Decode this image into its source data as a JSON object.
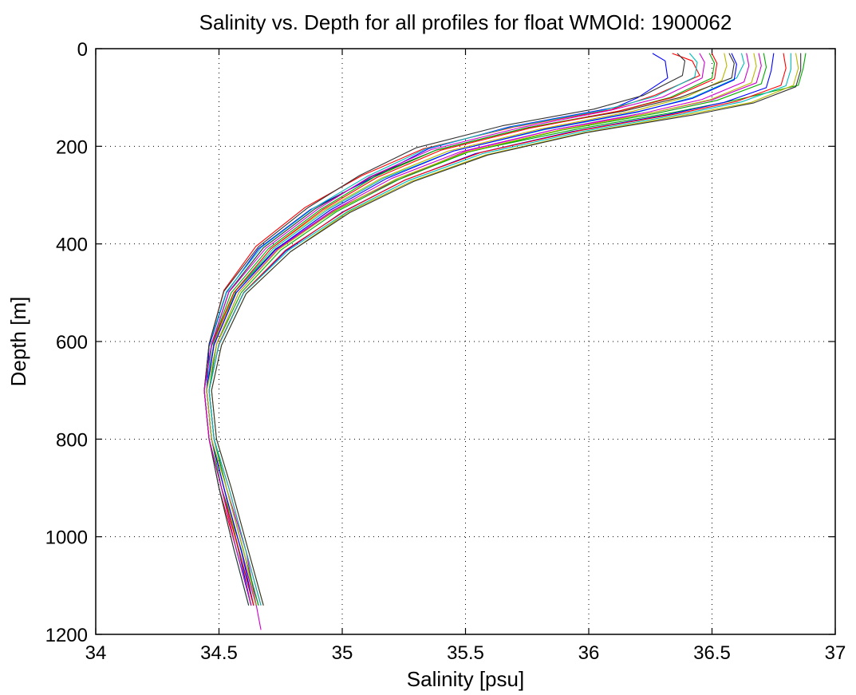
{
  "chart_data": {
    "type": "line",
    "title": "Salinity vs. Depth for all profiles for float WMOId: 1900062",
    "xlabel": "Salinity [psu]",
    "ylabel": "Depth [m]",
    "xlim": [
      34,
      37
    ],
    "ylim": [
      0,
      1200
    ],
    "y_inverted": true,
    "grid": true,
    "legend": "none",
    "x_ticks": [
      {
        "value": 34,
        "label": "34"
      },
      {
        "value": 34.5,
        "label": "34.5"
      },
      {
        "value": 35,
        "label": "35"
      },
      {
        "value": 35.5,
        "label": "35.5"
      },
      {
        "value": 36,
        "label": "36"
      },
      {
        "value": 36.5,
        "label": "36.5"
      },
      {
        "value": 37,
        "label": "37"
      }
    ],
    "y_ticks": [
      {
        "value": 0,
        "label": "0"
      },
      {
        "value": 200,
        "label": "200"
      },
      {
        "value": 400,
        "label": "400"
      },
      {
        "value": 600,
        "label": "600"
      },
      {
        "value": 800,
        "label": "800"
      },
      {
        "value": 1000,
        "label": "1000"
      },
      {
        "value": 1200,
        "label": "1200"
      }
    ],
    "series": [
      {
        "color": "#0000ff",
        "x": [
          36.26,
          36.31,
          36.32,
          36.2,
          36.11,
          35.68,
          35.35,
          35.12,
          34.87,
          34.66,
          34.53,
          34.46,
          34.45,
          34.47,
          34.52,
          34.58,
          34.63
        ],
        "y": [
          10,
          25,
          60,
          100,
          120,
          160,
          205,
          265,
          330,
          410,
          500,
          610,
          700,
          800,
          900,
          1030,
          1140
        ]
      },
      {
        "color": "#00aa00",
        "x": [
          36.88,
          36.87,
          36.85,
          36.6,
          36.35,
          35.95,
          35.52,
          35.23,
          34.98,
          34.73,
          34.57,
          34.48,
          34.45,
          34.47,
          34.51,
          34.59,
          34.65
        ],
        "y": [
          10,
          40,
          75,
          105,
          130,
          165,
          210,
          265,
          330,
          410,
          495,
          600,
          700,
          800,
          900,
          1025,
          1140
        ]
      },
      {
        "color": "#ff0000",
        "x": [
          36.34,
          36.42,
          36.45,
          36.27,
          36.09,
          35.7,
          35.33,
          35.08,
          34.85,
          34.65,
          34.52,
          34.46,
          34.44,
          34.46,
          34.5,
          34.57,
          34.63
        ],
        "y": [
          10,
          25,
          55,
          95,
          125,
          160,
          205,
          260,
          325,
          405,
          495,
          605,
          700,
          800,
          900,
          1025,
          1140
        ]
      },
      {
        "color": "#00bbbb",
        "x": [
          36.62,
          36.63,
          36.6,
          36.42,
          36.2,
          35.83,
          35.45,
          35.17,
          34.94,
          34.72,
          34.56,
          34.47,
          34.45,
          34.47,
          34.52,
          34.58,
          34.64
        ],
        "y": [
          10,
          30,
          60,
          100,
          130,
          165,
          210,
          265,
          330,
          410,
          500,
          610,
          700,
          800,
          900,
          1030,
          1140
        ]
      },
      {
        "color": "#cc00cc",
        "x": [
          36.69,
          36.7,
          36.68,
          36.5,
          36.27,
          35.87,
          35.5,
          35.22,
          34.97,
          34.74,
          34.58,
          34.49,
          34.46,
          34.48,
          34.53,
          34.61,
          34.67
        ],
        "y": [
          10,
          35,
          70,
          105,
          130,
          165,
          210,
          270,
          330,
          410,
          500,
          605,
          700,
          800,
          900,
          1030,
          1190
        ]
      },
      {
        "color": "#b8b800",
        "x": [
          36.55,
          36.56,
          36.54,
          36.39,
          36.18,
          35.8,
          35.43,
          35.16,
          34.93,
          34.71,
          34.56,
          34.48,
          34.45,
          34.47,
          34.52,
          34.58,
          34.64
        ],
        "y": [
          10,
          35,
          65,
          100,
          128,
          165,
          210,
          265,
          330,
          410,
          500,
          605,
          700,
          800,
          900,
          1025,
          1140
        ]
      },
      {
        "color": "#333333",
        "x": [
          36.57,
          36.59,
          36.58,
          36.37,
          36.14,
          35.75,
          35.38,
          35.12,
          34.89,
          34.68,
          34.54,
          34.47,
          34.44,
          34.46,
          34.51,
          34.58,
          34.64
        ],
        "y": [
          10,
          30,
          60,
          100,
          128,
          162,
          208,
          262,
          328,
          408,
          498,
          605,
          700,
          800,
          900,
          1025,
          1140
        ]
      },
      {
        "color": "#0000ff",
        "x": [
          36.75,
          36.74,
          36.72,
          36.55,
          36.32,
          35.93,
          35.54,
          35.25,
          35.0,
          34.77,
          34.6,
          34.5,
          34.46,
          34.48,
          34.53,
          34.6,
          34.66
        ],
        "y": [
          10,
          45,
          80,
          110,
          135,
          170,
          215,
          270,
          335,
          415,
          500,
          605,
          700,
          800,
          900,
          1030,
          1140
        ]
      },
      {
        "color": "#00aa00",
        "x": [
          36.49,
          36.51,
          36.5,
          36.33,
          36.12,
          35.74,
          35.38,
          35.13,
          34.91,
          34.7,
          34.55,
          34.47,
          34.44,
          34.46,
          34.51,
          34.57,
          34.63
        ],
        "y": [
          10,
          30,
          60,
          100,
          128,
          163,
          208,
          263,
          330,
          410,
          500,
          608,
          700,
          800,
          900,
          1025,
          1140
        ]
      },
      {
        "color": "#ff0000",
        "x": [
          36.79,
          36.8,
          36.78,
          36.6,
          36.36,
          35.96,
          35.56,
          35.26,
          35.01,
          34.77,
          34.6,
          34.5,
          34.46,
          34.48,
          34.54,
          34.61,
          34.67
        ],
        "y": [
          10,
          40,
          75,
          108,
          133,
          168,
          213,
          268,
          333,
          413,
          500,
          605,
          700,
          800,
          900,
          1030,
          1140
        ]
      },
      {
        "color": "#00bbbb",
        "x": [
          36.41,
          36.44,
          36.43,
          36.27,
          36.06,
          35.69,
          35.34,
          35.1,
          34.88,
          34.67,
          34.53,
          34.46,
          34.44,
          34.46,
          34.5,
          34.56,
          34.62
        ],
        "y": [
          10,
          28,
          58,
          98,
          126,
          160,
          205,
          262,
          328,
          408,
          498,
          606,
          700,
          800,
          900,
          1025,
          1140
        ]
      },
      {
        "color": "#cc00cc",
        "x": [
          36.64,
          36.65,
          36.63,
          36.46,
          36.24,
          35.86,
          35.48,
          35.2,
          34.96,
          34.73,
          34.57,
          34.48,
          34.45,
          34.47,
          34.52,
          34.59,
          34.65
        ],
        "y": [
          10,
          35,
          68,
          104,
          130,
          166,
          211,
          266,
          332,
          412,
          500,
          606,
          700,
          800,
          900,
          1028,
          1140
        ]
      },
      {
        "color": "#b8b800",
        "x": [
          36.84,
          36.85,
          36.83,
          36.66,
          36.4,
          35.98,
          35.58,
          35.28,
          35.02,
          34.79,
          34.61,
          34.51,
          34.47,
          34.49,
          34.55,
          34.62,
          34.68
        ],
        "y": [
          10,
          40,
          75,
          110,
          135,
          172,
          218,
          272,
          336,
          416,
          502,
          608,
          700,
          800,
          900,
          1030,
          1140
        ]
      },
      {
        "color": "#333333",
        "x": [
          36.36,
          36.39,
          36.38,
          36.22,
          36.02,
          35.65,
          35.3,
          35.07,
          34.86,
          34.66,
          34.52,
          34.46,
          34.44,
          34.46,
          34.5,
          34.56,
          34.62
        ],
        "y": [
          10,
          25,
          55,
          96,
          124,
          158,
          203,
          260,
          326,
          406,
          497,
          605,
          700,
          800,
          900,
          1025,
          1140
        ]
      },
      {
        "color": "#0000ff",
        "x": [
          36.58,
          36.6,
          36.59,
          36.42,
          36.2,
          35.82,
          35.45,
          35.18,
          34.95,
          34.73,
          34.57,
          34.48,
          34.45,
          34.47,
          34.52,
          34.59,
          34.64
        ],
        "y": [
          10,
          32,
          64,
          102,
          129,
          165,
          210,
          266,
          331,
          411,
          500,
          607,
          700,
          800,
          900,
          1028,
          1140
        ]
      },
      {
        "color": "#00aa00",
        "x": [
          36.71,
          36.72,
          36.7,
          36.52,
          36.28,
          35.89,
          35.51,
          35.23,
          34.98,
          34.75,
          34.59,
          34.49,
          34.46,
          34.48,
          34.53,
          34.6,
          34.66
        ],
        "y": [
          10,
          38,
          72,
          106,
          132,
          167,
          212,
          268,
          333,
          413,
          500,
          606,
          700,
          800,
          900,
          1030,
          1140
        ]
      },
      {
        "color": "#ff0000",
        "x": [
          36.5,
          36.52,
          36.51,
          36.34,
          36.13,
          35.76,
          35.4,
          35.14,
          34.92,
          34.71,
          34.56,
          34.47,
          34.44,
          34.46,
          34.51,
          34.58,
          34.64
        ],
        "y": [
          10,
          30,
          62,
          100,
          127,
          163,
          208,
          264,
          330,
          410,
          500,
          607,
          700,
          800,
          900,
          1027,
          1140
        ]
      },
      {
        "color": "#00bbbb",
        "x": [
          36.82,
          36.82,
          36.8,
          36.62,
          36.38,
          35.97,
          35.57,
          35.27,
          35.02,
          34.78,
          34.6,
          34.5,
          34.46,
          34.48,
          34.54,
          34.61,
          34.67
        ],
        "y": [
          10,
          42,
          76,
          109,
          134,
          170,
          215,
          270,
          334,
          414,
          501,
          607,
          700,
          800,
          900,
          1030,
          1140
        ]
      },
      {
        "color": "#cc00cc",
        "x": [
          36.45,
          36.47,
          36.46,
          36.3,
          36.09,
          35.72,
          35.36,
          35.11,
          34.9,
          34.69,
          34.54,
          34.47,
          34.44,
          34.46,
          34.51,
          34.57,
          34.63
        ],
        "y": [
          10,
          28,
          60,
          99,
          126,
          162,
          207,
          263,
          329,
          409,
          499,
          606,
          700,
          800,
          900,
          1026,
          1140
        ]
      },
      {
        "color": "#b8b800",
        "x": [
          36.67,
          36.68,
          36.66,
          36.49,
          36.26,
          35.88,
          35.5,
          35.22,
          34.97,
          34.74,
          34.58,
          34.49,
          34.45,
          34.47,
          34.53,
          34.6,
          34.65
        ],
        "y": [
          10,
          36,
          70,
          105,
          131,
          167,
          212,
          267,
          332,
          412,
          500,
          606,
          700,
          800,
          900,
          1028,
          1140
        ]
      },
      {
        "color": "#333333",
        "x": [
          36.86,
          36.86,
          36.84,
          36.67,
          36.42,
          35.99,
          35.59,
          35.29,
          35.03,
          34.79,
          34.61,
          34.51,
          34.47,
          34.49,
          34.55,
          34.62,
          34.68
        ],
        "y": [
          10,
          44,
          78,
          111,
          136,
          172,
          218,
          272,
          336,
          416,
          502,
          608,
          700,
          800,
          900,
          1030,
          1140
        ]
      }
    ]
  }
}
